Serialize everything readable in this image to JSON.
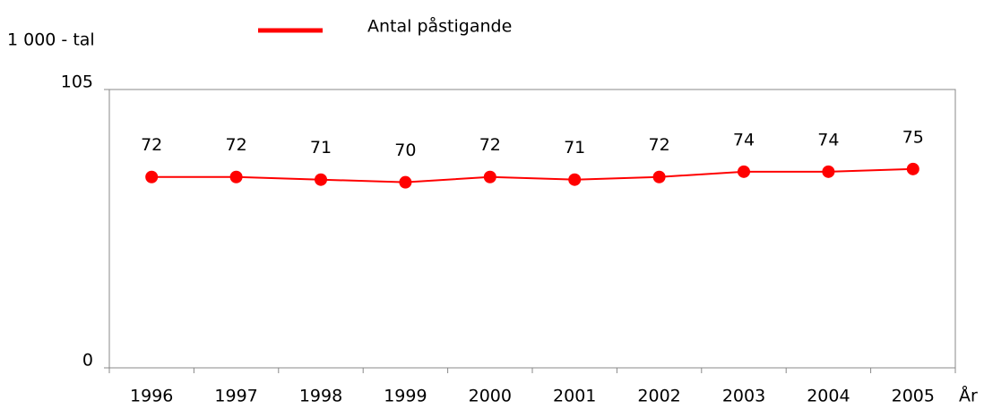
{
  "chart_data": {
    "type": "line",
    "y_label": "1 000 - tal",
    "x_label": "År",
    "categories": [
      "1996",
      "1997",
      "1998",
      "1999",
      "2000",
      "2001",
      "2002",
      "2003",
      "2004",
      "2005"
    ],
    "series": [
      {
        "name": "Antal påstigande",
        "color": "#ff0000",
        "values": [
          72,
          72,
          71,
          70,
          72,
          71,
          72,
          74,
          74,
          75
        ]
      }
    ],
    "ylim": [
      0,
      105
    ],
    "yticks": [
      0,
      105
    ],
    "grid": false,
    "legend": "top"
  }
}
